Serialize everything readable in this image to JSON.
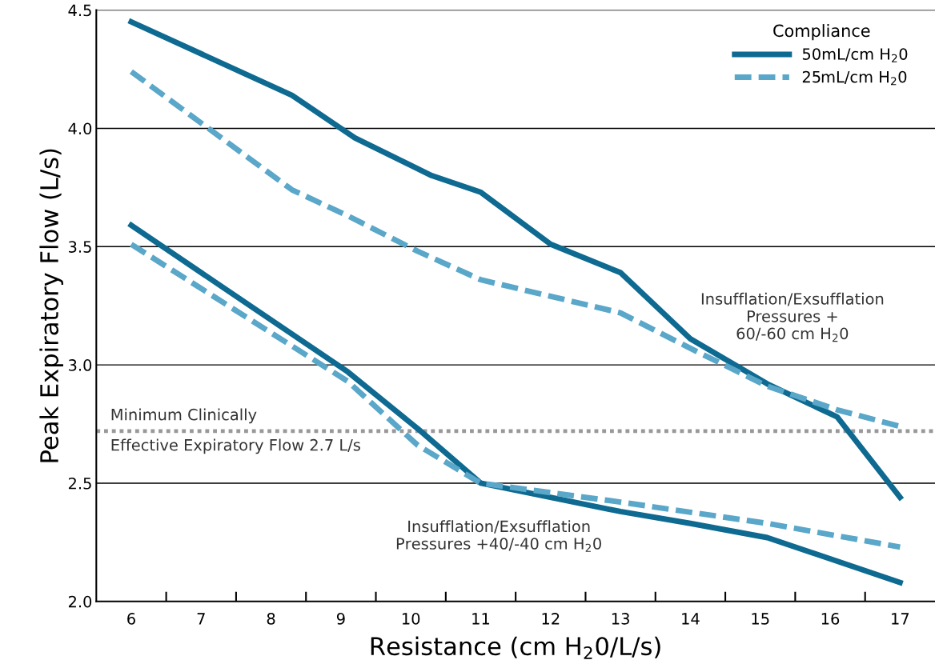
{
  "chart_data": {
    "type": "line",
    "xlabel": "Resistance (cm H$_{2}$0/L/s)",
    "ylabel": "Peak Expiratory Flow (L/s)",
    "legend_title": "Compliance",
    "legend": "top right",
    "grid": "y",
    "xlim": [
      5.5,
      17.5
    ],
    "ylim": [
      2.0,
      4.5
    ],
    "xticks": [
      6,
      7,
      8,
      9,
      10,
      11,
      12,
      13,
      14,
      15,
      16,
      17
    ],
    "yticks": [
      {
        "value": 2.0,
        "label": "2.0"
      },
      {
        "value": 2.5,
        "label": "2.5"
      },
      {
        "value": 3.0,
        "label": "3.0"
      },
      {
        "value": 3.5,
        "label": "3.5"
      },
      {
        "value": 4.0,
        "label": "4.0"
      },
      {
        "value": 4.5,
        "label": "4.5"
      }
    ],
    "series": [
      {
        "name": "50mL/cm H$_{2}$0",
        "color": "#0e6a91",
        "line_style": "solid",
        "x": [
          6,
          8.3,
          9.2,
          10.3,
          11,
          12,
          13,
          14,
          15.1,
          16.1,
          17
        ],
        "values": [
          4.45,
          4.14,
          3.96,
          3.8,
          3.73,
          3.51,
          3.39,
          3.11,
          2.92,
          2.78,
          2.44
        ]
      },
      {
        "name": "25mL/cm H$_{2}$0",
        "color": "#5aa7c9",
        "line_style": "dashed",
        "x": [
          6,
          8.3,
          9.1,
          10.1,
          11,
          12,
          13,
          14,
          15.1,
          16.1,
          17
        ],
        "values": [
          4.24,
          3.74,
          3.63,
          3.48,
          3.36,
          3.29,
          3.22,
          3.07,
          2.91,
          2.81,
          2.74
        ]
      },
      {
        "color": "#0e6a91",
        "line_style": "solid",
        "x": [
          6,
          9.1,
          10.1,
          11,
          13,
          14,
          15.1,
          17
        ],
        "values": [
          3.59,
          2.97,
          2.73,
          2.5,
          2.38,
          2.33,
          2.27,
          2.08
        ]
      },
      {
        "color": "#5aa7c9",
        "line_style": "dashed",
        "x": [
          6,
          9.1,
          10.1,
          11,
          13,
          15.1,
          17
        ],
        "values": [
          3.51,
          2.93,
          2.66,
          2.5,
          2.42,
          2.33,
          2.23
        ]
      }
    ],
    "ref_lines": [
      {
        "axis": "y",
        "value": 2.72,
        "label": "Minimum Clinically\nEffective Expiratory Flow 2.7 L/s",
        "color": "#999999",
        "line_style": "dotted"
      }
    ],
    "annotations": [
      "Insufflation/Exsufflation\nPressures +\n60/-60 cm H$_{2}$0",
      "Insufflation/Exsufflation\nPressures +40/-40 cm H$_{2}$0"
    ]
  }
}
